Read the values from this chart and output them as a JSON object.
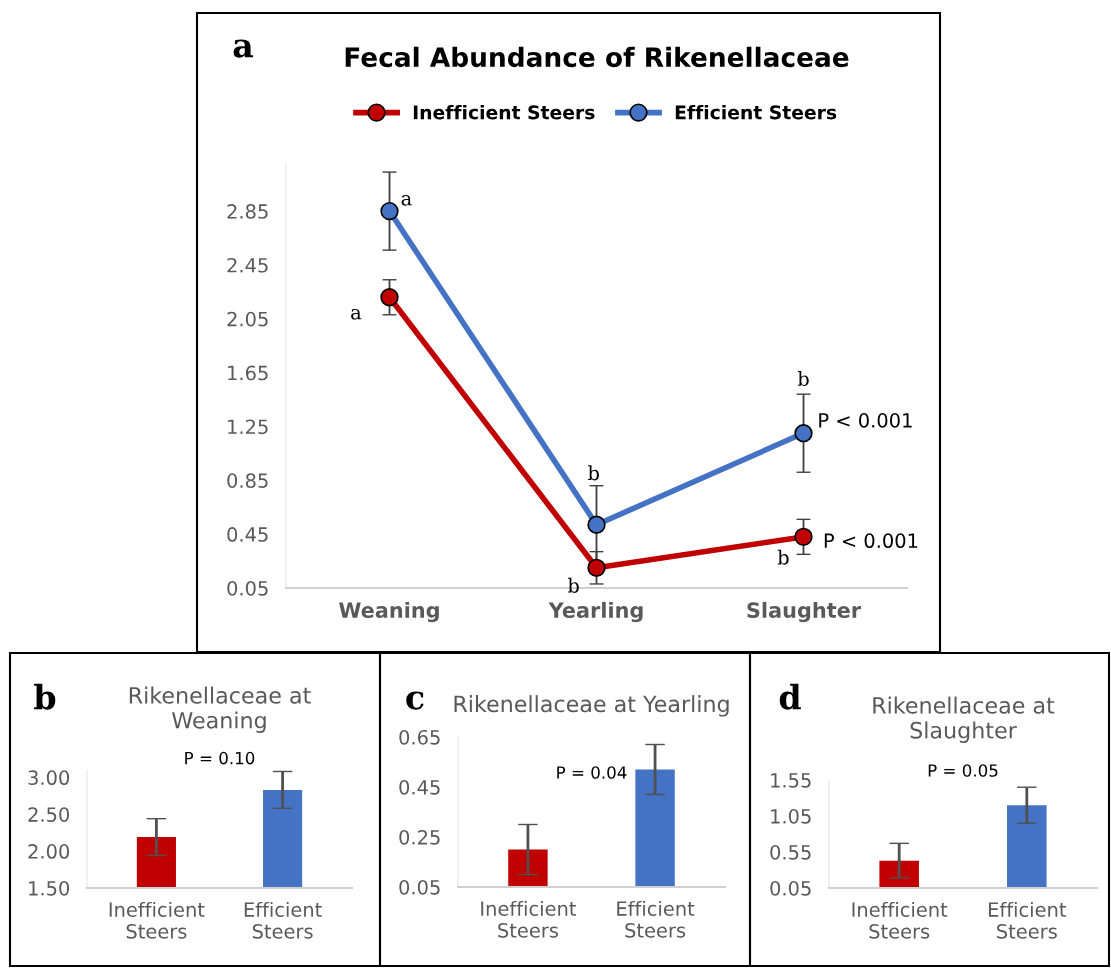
{
  "chart_data": [
    {
      "type": "line",
      "title": "Fecal Abundance of Rikenellaceae",
      "categories": [
        "Weaning",
        "Yearling",
        "Slaughter"
      ],
      "series": [
        {
          "name": "Inefficient Steers",
          "color": "#c00000",
          "values": [
            2.21,
            0.2,
            0.43
          ],
          "errors": [
            0.13,
            0.12,
            0.13
          ]
        },
        {
          "name": "Efficient Steers",
          "color": "#4472c4",
          "values": [
            2.85,
            0.52,
            1.2
          ],
          "errors": [
            0.29,
            0.29,
            0.29
          ]
        }
      ],
      "ylim": [
        0.05,
        3.2
      ],
      "yticks": [
        {
          "value": 0.05,
          "label": "0.05"
        },
        0.45,
        0.85,
        1.25,
        1.65,
        2.05,
        2.45,
        2.85
      ],
      "marker": "circle",
      "legend": "top",
      "grid": false,
      "annotations": [
        "a",
        {
          "text": "a",
          "x": "Weaning",
          "y": 2.85
        },
        {
          "text": "a",
          "x": "Weaning",
          "y": 2.21
        },
        {
          "text": "b",
          "x": "Yearling",
          "y": 0.52
        },
        {
          "text": "b",
          "x": "Yearling",
          "y": 0.2
        },
        {
          "text": "b",
          "x": "Slaughter",
          "y": 1.2
        },
        {
          "text": "P < 0.001",
          "x": "Slaughter",
          "y": 1.2
        },
        {
          "text": "P < 0.001",
          "x": "Slaughter",
          "y": 0.43
        },
        {
          "text": "b",
          "x": "Slaughter",
          "y": 0.43
        }
      ]
    },
    {
      "type": "bar",
      "title": "Rikenellaceae at\nWeaning",
      "categories": [
        "Inefficient\nSteers",
        "Efficient\nSteers"
      ],
      "values": [
        2.19,
        2.83
      ],
      "colors": [
        "#c00000",
        "#4472c4"
      ],
      "errors": [
        0.25,
        0.25
      ],
      "ylim": [
        1.5,
        3.1
      ],
      "yticks": [
        {
          "value": 1.5,
          "label": "1.50"
        },
        {
          "value": 2.0,
          "label": "2.00"
        },
        {
          "value": 2.5,
          "label": "2.50"
        },
        {
          "value": 3.0,
          "label": "3.00"
        }
      ],
      "grid": false,
      "annotations": [
        "b",
        "P = 0.10"
      ]
    },
    {
      "type": "bar",
      "title": "Rikenellaceae at Yearling",
      "categories": [
        "Inefficient\nSteers",
        "Efficient\nSteers"
      ],
      "values": [
        0.2,
        0.52
      ],
      "colors": [
        "#c00000",
        "#4472c4"
      ],
      "errors": [
        0.1,
        0.1
      ],
      "ylim": [
        0.05,
        0.65
      ],
      "yticks": [
        0.05,
        0.25,
        0.45,
        0.65
      ],
      "grid": false,
      "annotations": [
        "c",
        "P = 0.04"
      ]
    },
    {
      "type": "bar",
      "title": "Rikenellaceae at\nSlaughter",
      "categories": [
        "Inefficient\nSteers",
        "Efficient\nSteers"
      ],
      "values": [
        0.43,
        1.2
      ],
      "colors": [
        "#c00000",
        "#4472c4"
      ],
      "errors": [
        0.24,
        0.25
      ],
      "ylim": [
        0.05,
        1.55
      ],
      "yticks": [
        0.05,
        0.55,
        1.05,
        1.55
      ],
      "grid": false,
      "annotations": [
        "d",
        "P = 0.05"
      ]
    }
  ]
}
